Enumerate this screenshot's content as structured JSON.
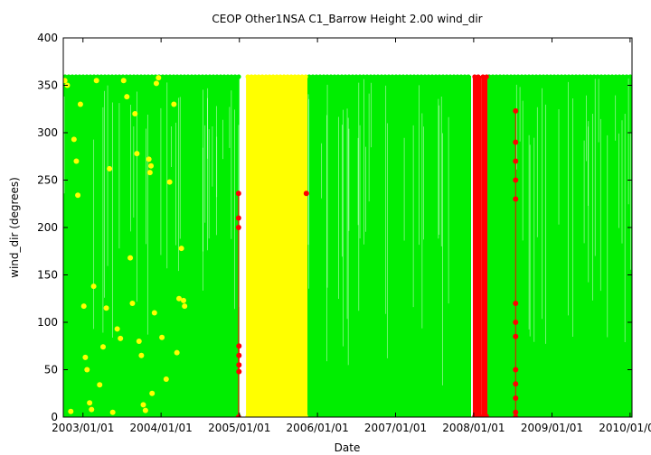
{
  "chart_data": {
    "type": "scatter",
    "title": "CEOP Other1NSA C1_Barrow Height 2.00 wind_dir",
    "xlabel": "Date",
    "ylabel": "wind_dir (degrees)",
    "xlim": [
      "2002-10-01",
      "2010-01-10"
    ],
    "ylim": [
      0,
      400
    ],
    "x_ticks": [
      "2003/01/01",
      "2004/01/01",
      "2005/01/01",
      "2006/01/01",
      "2007/01/01",
      "2008/01/01",
      "2009/01/01",
      "2010/01/01"
    ],
    "y_ticks": [
      0,
      50,
      100,
      150,
      200,
      250,
      300,
      350,
      400
    ],
    "grid": false,
    "legend": "none",
    "colors": {
      "good": "#00ee00",
      "questionable": "#ffff00",
      "bad": "#ff0000",
      "background": "#ffffff"
    },
    "series": [
      {
        "color": "good",
        "ranges": [
          {
            "start": "2002-10-01",
            "end": "2005-01-01",
            "y_min": 0,
            "y_max": 360
          },
          {
            "start": "2005-11-15",
            "end": "2007-12-20",
            "y_min": 0,
            "y_max": 360
          },
          {
            "start": "2008-03-05",
            "end": "2010-01-10",
            "y_min": 0,
            "y_max": 360
          }
        ]
      },
      {
        "color": "questionable",
        "ranges": [
          {
            "start": "2005-02-01",
            "end": "2005-11-15",
            "y_min": 0,
            "y_max": 360
          }
        ],
        "points": [
          [
            "2002-10-08",
            355
          ],
          [
            "2002-10-20",
            350
          ],
          [
            "2002-11-05",
            6
          ],
          [
            "2002-11-20",
            293
          ],
          [
            "2002-12-01",
            270
          ],
          [
            "2002-12-08",
            234
          ],
          [
            "2002-12-20",
            330
          ],
          [
            "2003-01-05",
            117
          ],
          [
            "2003-01-12",
            63
          ],
          [
            "2003-01-20",
            50
          ],
          [
            "2003-02-01",
            15
          ],
          [
            "2003-02-10",
            8
          ],
          [
            "2003-02-20",
            138
          ],
          [
            "2003-03-05",
            355
          ],
          [
            "2003-03-20",
            34
          ],
          [
            "2003-04-05",
            74
          ],
          [
            "2003-04-20",
            115
          ],
          [
            "2003-05-05",
            262
          ],
          [
            "2003-05-20",
            5
          ],
          [
            "2003-06-10",
            93
          ],
          [
            "2003-06-25",
            83
          ],
          [
            "2003-07-10",
            355
          ],
          [
            "2003-07-25",
            338
          ],
          [
            "2003-08-10",
            168
          ],
          [
            "2003-08-20",
            120
          ],
          [
            "2003-09-01",
            320
          ],
          [
            "2003-09-10",
            278
          ],
          [
            "2003-09-20",
            80
          ],
          [
            "2003-10-01",
            65
          ],
          [
            "2003-10-10",
            13
          ],
          [
            "2003-10-20",
            7
          ],
          [
            "2003-11-05",
            272
          ],
          [
            "2003-11-10",
            258
          ],
          [
            "2003-11-15",
            265
          ],
          [
            "2003-11-20",
            25
          ],
          [
            "2003-12-01",
            110
          ],
          [
            "2003-12-10",
            352
          ],
          [
            "2003-12-20",
            358
          ],
          [
            "2004-01-05",
            84
          ],
          [
            "2004-01-25",
            40
          ],
          [
            "2004-02-10",
            248
          ],
          [
            "2004-03-01",
            330
          ],
          [
            "2004-03-15",
            68
          ],
          [
            "2004-03-25",
            125
          ],
          [
            "2004-04-05",
            178
          ],
          [
            "2004-04-15",
            123
          ],
          [
            "2004-04-20",
            117
          ]
        ]
      },
      {
        "color": "bad",
        "ranges": [
          {
            "start": "2007-12-28",
            "end": "2008-02-05",
            "y_min": 0,
            "y_max": 360
          },
          {
            "start": "2008-02-05",
            "end": "2008-03-05",
            "y_min": 0,
            "y_max": 360
          }
        ],
        "points": [
          [
            "2004-12-28",
            236
          ],
          [
            "2004-12-28",
            210
          ],
          [
            "2004-12-28",
            200
          ],
          [
            "2004-12-28",
            0
          ],
          [
            "2004-12-30",
            75
          ],
          [
            "2004-12-30",
            65
          ],
          [
            "2004-12-30",
            55
          ],
          [
            "2004-12-30",
            48
          ],
          [
            "2005-11-10",
            236
          ],
          [
            "2008-07-15",
            323
          ],
          [
            "2008-07-15",
            290
          ],
          [
            "2008-07-15",
            270
          ],
          [
            "2008-07-15",
            250
          ],
          [
            "2008-07-15",
            230
          ],
          [
            "2008-07-15",
            120
          ],
          [
            "2008-07-15",
            100
          ],
          [
            "2008-07-15",
            85
          ],
          [
            "2008-07-15",
            50
          ],
          [
            "2008-07-15",
            35
          ],
          [
            "2008-07-15",
            20
          ],
          [
            "2008-07-15",
            5
          ],
          [
            "2008-07-15",
            0
          ]
        ]
      }
    ]
  }
}
